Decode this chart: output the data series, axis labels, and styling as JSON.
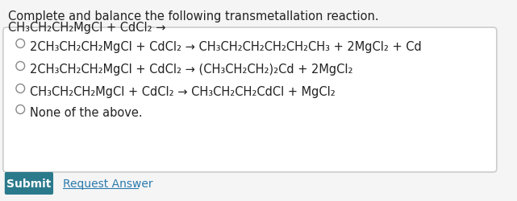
{
  "title_line1": "Complete and balance the following transmetallation reaction.",
  "title_line2": "CH₃CH₂CH₂MgCl + CdCl₂ →",
  "options": [
    "2CH₃CH₂CH₂MgCl + CdCl₂ → CH₃CH₂CH₂CH₂CH₂CH₃ + 2MgCl₂ + Cd",
    "2CH₃CH₂CH₂MgCl + CdCl₂ → (CH₃CH₂CH₂)₂Cd + 2MgCl₂",
    "CH₃CH₂CH₂MgCl + CdCl₂ → CH₃CH₂CH₂CdCl + MgCl₂",
    "None of the above."
  ],
  "bg_color": "#f5f5f5",
  "box_bg": "#ffffff",
  "box_border": "#cccccc",
  "submit_bg": "#2a7a8c",
  "submit_text": "Submit",
  "request_text": "Request Answer",
  "request_color": "#2a7aad",
  "text_color": "#222222",
  "font_size": 10.5,
  "title_font_size": 10.5
}
